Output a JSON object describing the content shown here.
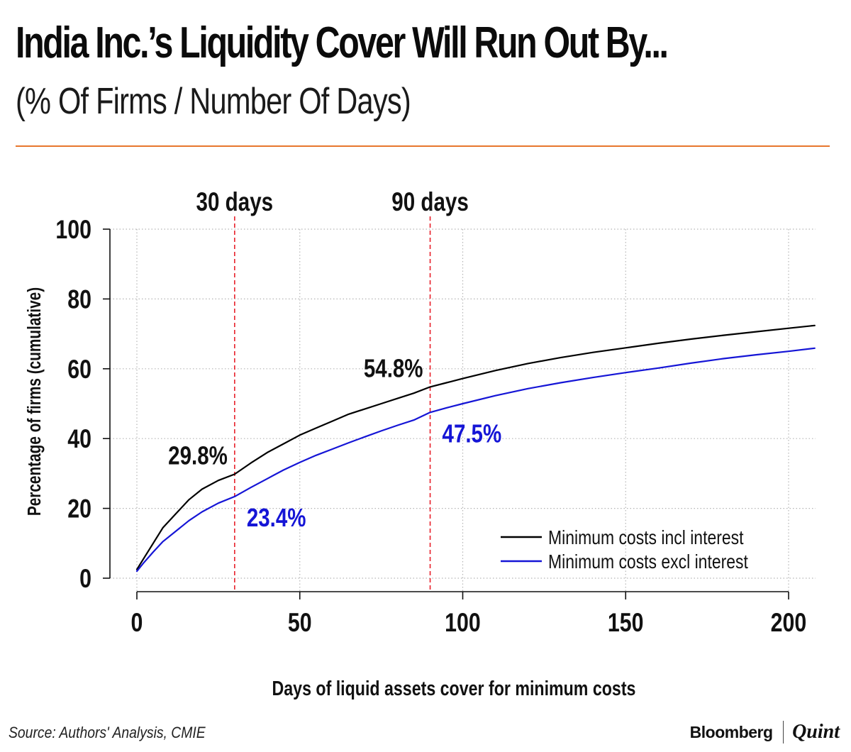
{
  "header": {
    "title": "India Inc.’s Liquidity Cover Will Run Out By...",
    "subtitle": "(% Of Firms / Number Of Days)"
  },
  "chart_data": {
    "type": "line",
    "xlabel": "Days of liquid assets cover for minimum costs",
    "ylabel": "Percentage of firms (cumulative)",
    "xlim": [
      0,
      208
    ],
    "ylim": [
      0,
      100
    ],
    "x_ticks": [
      0,
      50,
      100,
      150,
      200
    ],
    "y_ticks": [
      0,
      20,
      40,
      60,
      80,
      100
    ],
    "grid": true,
    "legend_position": "bottom-right",
    "series": [
      {
        "name": "Minimum costs incl interest",
        "color": "#000000",
        "x": [
          0,
          2,
          5,
          8,
          12,
          16,
          20,
          25,
          30,
          35,
          40,
          45,
          50,
          55,
          60,
          65,
          70,
          75,
          80,
          85,
          90,
          95,
          100,
          110,
          120,
          130,
          140,
          150,
          160,
          170,
          180,
          190,
          200,
          208
        ],
        "y": [
          2.5,
          5.5,
          10.0,
          14.5,
          18.5,
          22.5,
          25.5,
          28.0,
          29.8,
          33.0,
          36.0,
          38.5,
          41.0,
          43.0,
          45.0,
          47.0,
          48.5,
          50.0,
          51.5,
          53.0,
          54.8,
          56.0,
          57.2,
          59.5,
          61.5,
          63.2,
          64.7,
          66.0,
          67.3,
          68.5,
          69.6,
          70.6,
          71.6,
          72.4
        ]
      },
      {
        "name": "Minimum costs excl interest",
        "color": "#1515d6",
        "x": [
          0,
          2,
          5,
          8,
          12,
          16,
          20,
          25,
          30,
          35,
          40,
          45,
          50,
          55,
          60,
          65,
          70,
          75,
          80,
          85,
          90,
          95,
          100,
          110,
          120,
          130,
          140,
          150,
          160,
          170,
          180,
          190,
          200,
          208
        ],
        "y": [
          2.0,
          4.3,
          7.5,
          10.5,
          13.5,
          16.5,
          19.0,
          21.5,
          23.4,
          26.0,
          28.5,
          31.0,
          33.2,
          35.2,
          37.0,
          38.8,
          40.5,
          42.2,
          43.8,
          45.3,
          47.5,
          48.8,
          50.0,
          52.3,
          54.3,
          56.0,
          57.5,
          58.9,
          60.2,
          61.6,
          62.9,
          64.0,
          65.0,
          65.9
        ]
      }
    ],
    "reference_lines": [
      {
        "x": 30,
        "label": "30 days",
        "color": "#e8202a"
      },
      {
        "x": 90,
        "label": "90 days",
        "color": "#e8202a"
      }
    ],
    "annotations": [
      {
        "x": 30,
        "y": 29.8,
        "text": "29.8%",
        "color": "#111111",
        "side": "left-above"
      },
      {
        "x": 30,
        "y": 23.4,
        "text": "23.4%",
        "color": "#1515d6",
        "side": "right-below"
      },
      {
        "x": 90,
        "y": 54.8,
        "text": "54.8%",
        "color": "#111111",
        "side": "left-above"
      },
      {
        "x": 90,
        "y": 47.5,
        "text": "47.5%",
        "color": "#1515d6",
        "side": "right-below"
      }
    ]
  },
  "footer": {
    "source": "Source: Authors' Analysis, CMIE",
    "brand_primary": "Bloomberg",
    "brand_secondary": "Quint"
  }
}
